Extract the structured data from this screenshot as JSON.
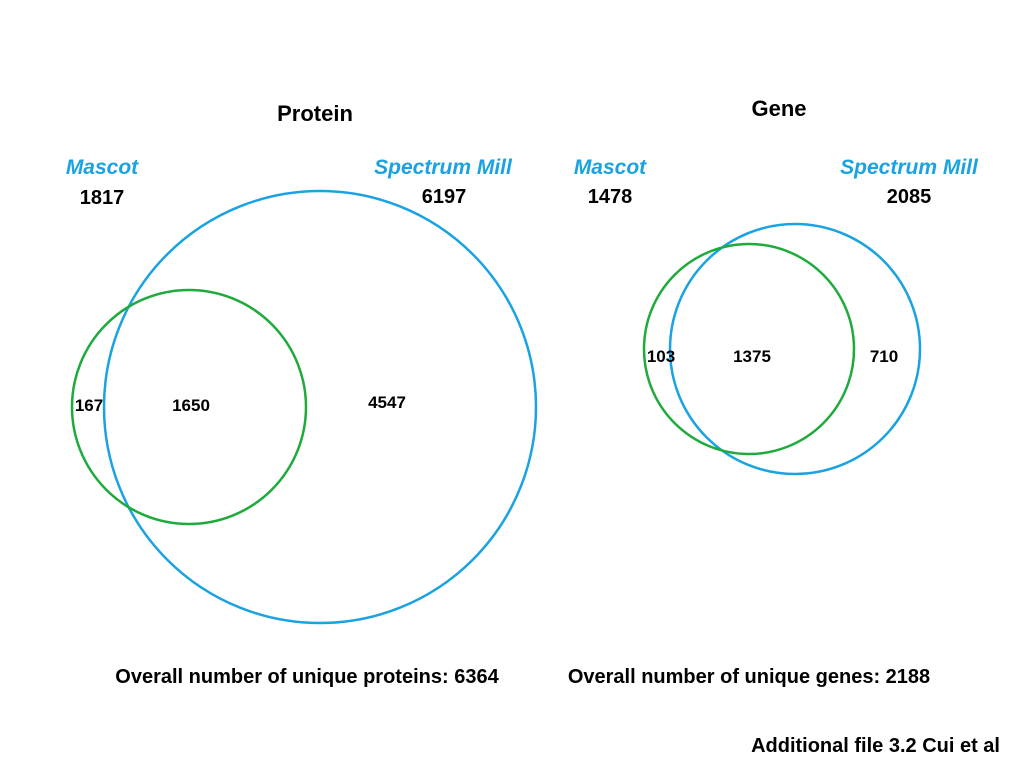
{
  "colors": {
    "mascot": "#1faa3c",
    "spectrum_mill": "#1aa3e0",
    "set_label": "#1aa3e0",
    "text": "#000000"
  },
  "protein": {
    "title": "Protein",
    "mascot": {
      "name": "Mascot",
      "total": "1817"
    },
    "spectrum_mill": {
      "name": "Spectrum Mill",
      "total": "6197"
    },
    "regions": {
      "mascot_only": "167",
      "overlap": "1650",
      "spectrum_mill_only": "4547"
    },
    "overall": "Overall number of unique proteins: 6364"
  },
  "gene": {
    "title": "Gene",
    "mascot": {
      "name": "Mascot",
      "total": "1478"
    },
    "spectrum_mill": {
      "name": "Spectrum Mill",
      "total": "2085"
    },
    "regions": {
      "mascot_only": "103",
      "overlap": "1375",
      "spectrum_mill_only": "710"
    },
    "overall": "Overall number of unique genes: 2188"
  },
  "caption": "Additional file 3.2 Cui et al"
}
